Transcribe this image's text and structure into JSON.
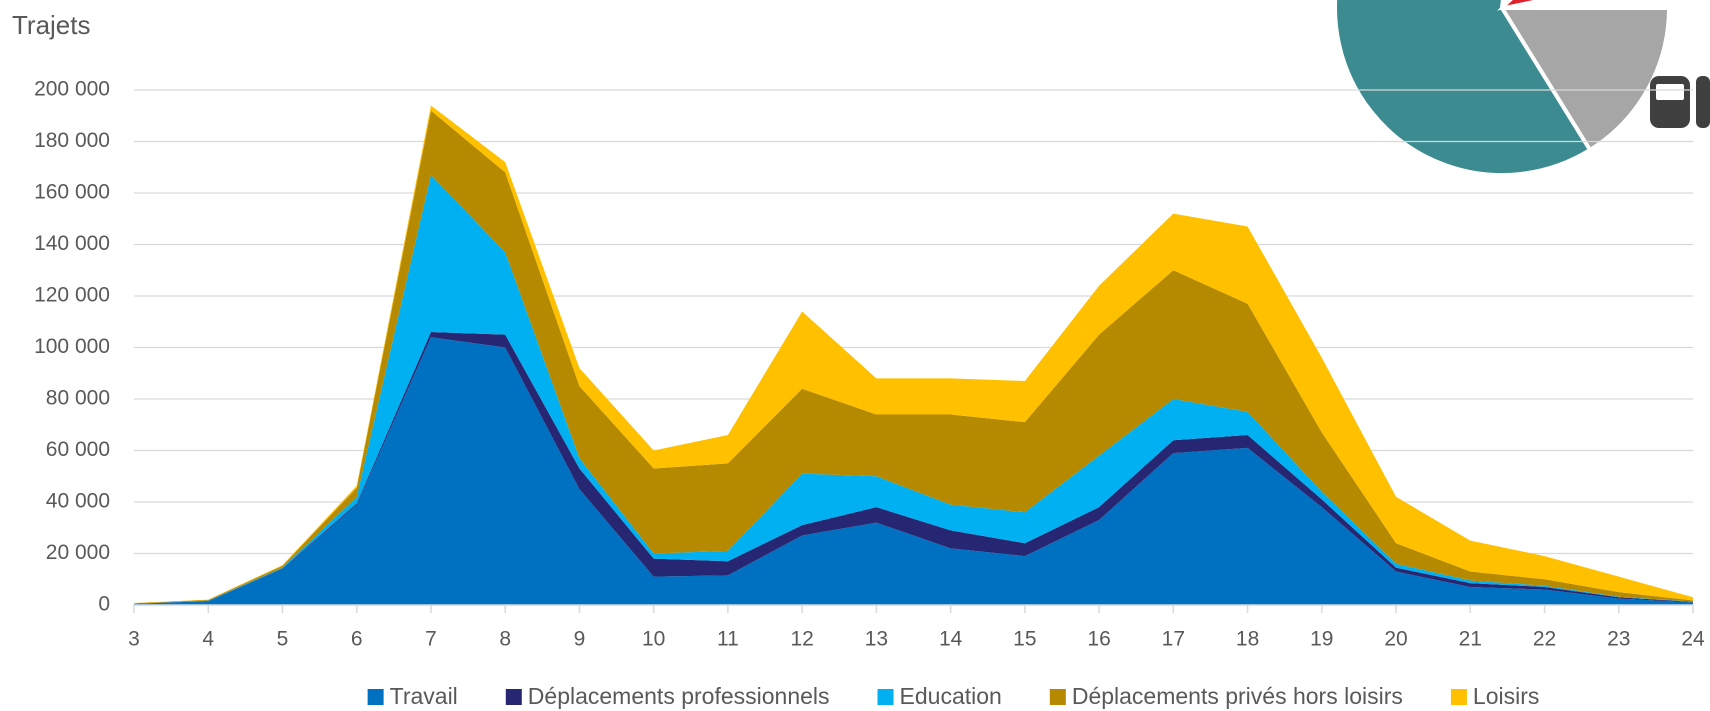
{
  "chart_data": {
    "type": "stacked_area",
    "title": "Trajets",
    "x": [
      3,
      4,
      5,
      6,
      7,
      8,
      9,
      10,
      11,
      12,
      13,
      14,
      15,
      16,
      17,
      18,
      19,
      20,
      21,
      22,
      23,
      24
    ],
    "xlim": [
      3,
      24
    ],
    "xticks": [
      3,
      4,
      5,
      6,
      7,
      8,
      9,
      10,
      11,
      12,
      13,
      14,
      15,
      16,
      17,
      18,
      19,
      20,
      21,
      22,
      23,
      24
    ],
    "ylim": [
      0,
      200000
    ],
    "yticks": [
      0,
      {
        "value": 20000,
        "label": "20 000"
      },
      {
        "value": 40000,
        "label": "40 000"
      },
      {
        "value": 60000,
        "label": "60 000"
      },
      {
        "value": 80000,
        "label": "80 000"
      },
      {
        "value": 100000,
        "label": "100 000"
      },
      {
        "value": 120000,
        "label": "120 000"
      },
      {
        "value": 140000,
        "label": "140 000"
      },
      {
        "value": 160000,
        "label": "160 000"
      },
      {
        "value": 180000,
        "label": "180 000"
      },
      {
        "value": 200000,
        "label": "200 000"
      }
    ],
    "grid": true,
    "legend": "bottom",
    "series": [
      {
        "name": "Travail",
        "color": "#0070c0",
        "values": [
          500,
          1500,
          14000,
          39000,
          104000,
          100000,
          45000,
          11000,
          11500,
          27000,
          32000,
          22000,
          19000,
          33000,
          59000,
          61000,
          38000,
          13000,
          7000,
          6000,
          2500,
          1000
        ]
      },
      {
        "name": "Déplacements professionnels",
        "color": "#262673",
        "values": [
          0,
          100,
          200,
          500,
          2000,
          5000,
          8000,
          7000,
          5500,
          4000,
          6000,
          7000,
          5000,
          5000,
          5000,
          5000,
          3000,
          1500,
          1500,
          1000,
          500,
          200
        ]
      },
      {
        "name": "Education",
        "color": "#00b0f0",
        "values": [
          0,
          100,
          300,
          2500,
          61000,
          32000,
          4000,
          2000,
          4000,
          20000,
          12000,
          10000,
          12000,
          20000,
          16000,
          9000,
          3000,
          1500,
          1000,
          500,
          200,
          100
        ]
      },
      {
        "name": "Déplacements privés hors loisirs",
        "color": "#b58a00",
        "values": [
          200,
          300,
          700,
          3500,
          25000,
          31000,
          28000,
          33000,
          34000,
          33000,
          24000,
          35000,
          35000,
          47000,
          50000,
          42000,
          23000,
          8000,
          3500,
          2500,
          1800,
          500
        ]
      },
      {
        "name": "Loisirs",
        "color": "#ffc000",
        "values": [
          100,
          100,
          300,
          800,
          2000,
          4000,
          7000,
          7000,
          11000,
          30000,
          14000,
          14000,
          16000,
          19000,
          22000,
          30000,
          29000,
          18000,
          12000,
          9000,
          6000,
          1200
        ]
      }
    ]
  }
}
